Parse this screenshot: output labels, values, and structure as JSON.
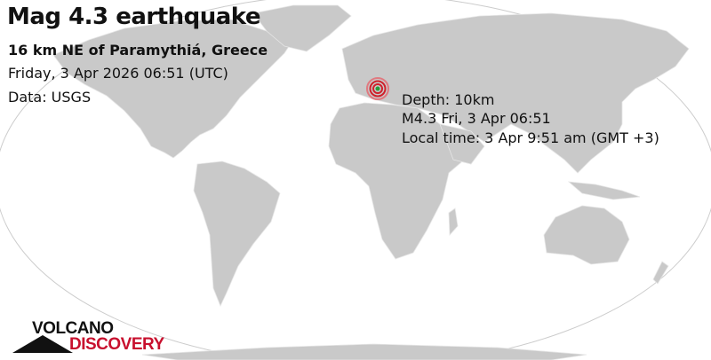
{
  "header": {
    "title": "Mag 4.3 earthquake",
    "location": "16 km NE of Paramythiá, Greece",
    "datetime": "Friday,  3 Apr 2026 06:51 (UTC)",
    "source": "Data: USGS"
  },
  "marker": {
    "icon": "epicenter-target-icon",
    "depth": "Depth: 10km",
    "summary": "M4.3 Fri,  3 Apr 06:51",
    "local_time": "Local time: 3 Apr 9:51 am (GMT +3)",
    "color": "#d0202a"
  },
  "logo": {
    "line1": "VOLCANO",
    "line2": "DISCOVERY"
  },
  "colors": {
    "land": "#c9c9c9",
    "ocean": "#ffffff",
    "border": "#e6e6e6"
  }
}
